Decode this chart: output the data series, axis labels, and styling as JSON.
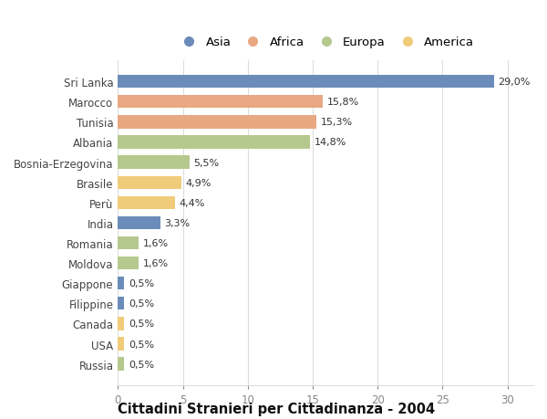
{
  "countries": [
    "Sri Lanka",
    "Marocco",
    "Tunisia",
    "Albania",
    "Bosnia-Erzegovina",
    "Brasile",
    "Perù",
    "India",
    "Romania",
    "Moldova",
    "Giappone",
    "Filippine",
    "Canada",
    "USA",
    "Russia"
  ],
  "values": [
    29.0,
    15.8,
    15.3,
    14.8,
    5.5,
    4.9,
    4.4,
    3.3,
    1.6,
    1.6,
    0.5,
    0.5,
    0.5,
    0.5,
    0.5
  ],
  "labels": [
    "29,0%",
    "15,8%",
    "15,3%",
    "14,8%",
    "5,5%",
    "4,9%",
    "4,4%",
    "3,3%",
    "1,6%",
    "1,6%",
    "0,5%",
    "0,5%",
    "0,5%",
    "0,5%",
    "0,5%"
  ],
  "continents": [
    "Asia",
    "Africa",
    "Africa",
    "Europa",
    "Europa",
    "America",
    "America",
    "Asia",
    "Europa",
    "Europa",
    "Asia",
    "Asia",
    "America",
    "America",
    "Europa"
  ],
  "continent_colors": {
    "Asia": "#6b8cba",
    "Africa": "#e8a882",
    "Europa": "#b5c98e",
    "America": "#f0cc7a"
  },
  "legend_order": [
    "Asia",
    "Africa",
    "Europa",
    "America"
  ],
  "title": "Cittadini Stranieri per Cittadinanza - 2004",
  "xlim": [
    0,
    32
  ],
  "xticks": [
    0,
    5,
    10,
    15,
    20,
    25,
    30
  ],
  "background_color": "#ffffff",
  "grid_color": "#dddddd",
  "bar_height": 0.65,
  "title_fontsize": 10.5,
  "subtitle_fontsize": 8,
  "label_fontsize": 8,
  "ytick_fontsize": 8.5,
  "xtick_fontsize": 8.5,
  "legend_fontsize": 9.5
}
